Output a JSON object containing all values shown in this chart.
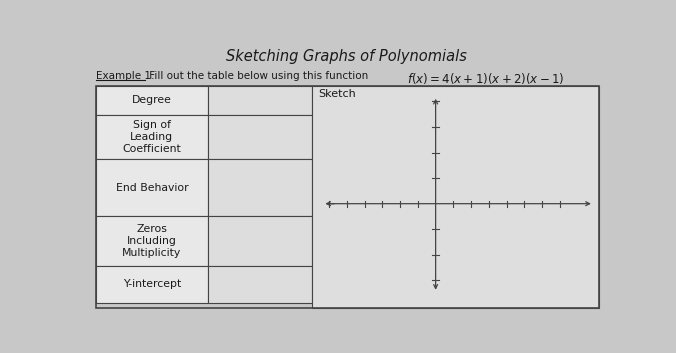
{
  "title": "Sketching Graphs of Polynomials",
  "example_label": "Example 1:",
  "subtitle_rest": " Fill out the table below using this function",
  "function_text": "f(x) = 4(x + 1)(x + 2)(x − 1)",
  "row_labels": [
    "Degree",
    "Sign of\nLeading\nCoefficient",
    "End Behavior",
    "Zeros\nIncluding\nMultiplicity",
    "Y-intercept"
  ],
  "sketch_header": "Sketch",
  "bg_color": "#c8c8c8",
  "table_bg": "#e2e2e2",
  "cell_bg": "#e8e8e8",
  "border_color": "#444444",
  "text_color": "#1a1a1a",
  "title_fontsize": 10.5,
  "label_fontsize": 8.0,
  "axis_color": "#444444"
}
